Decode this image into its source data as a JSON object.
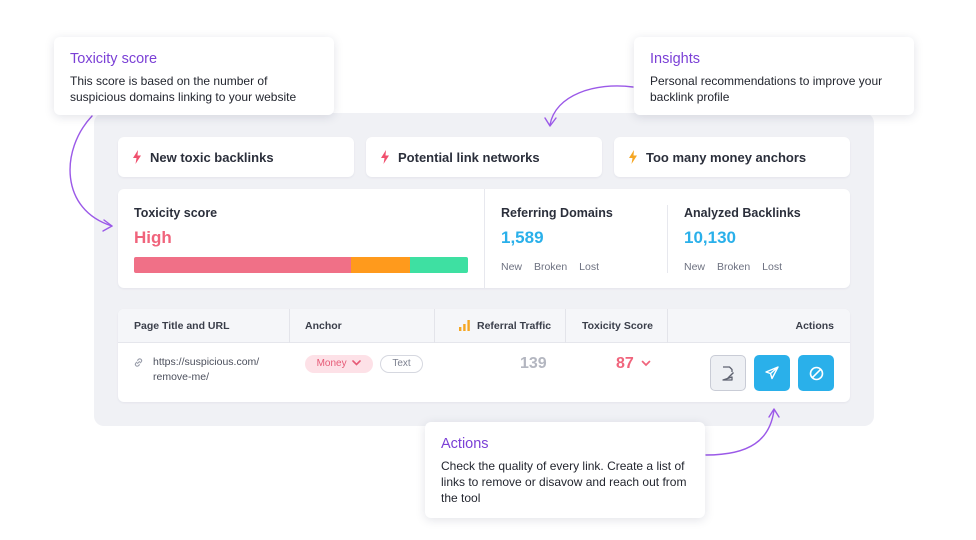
{
  "alerts": [
    {
      "label": "New toxic backlinks",
      "icon": "lightning-icon",
      "color": "#f0506e"
    },
    {
      "label": "Potential link networks",
      "icon": "lightning-icon",
      "color": "#f0506e"
    },
    {
      "label": "Too many money anchors",
      "icon": "lightning-icon",
      "color": "#f5a623"
    }
  ],
  "toxicity": {
    "label": "Toxicity score",
    "value": "High",
    "value_color": "#f0647c",
    "segments": [
      {
        "level": "high",
        "fraction": 0.65,
        "color": "#f07087"
      },
      {
        "level": "medium",
        "fraction": 0.175,
        "color": "#ff9a1c"
      },
      {
        "level": "low",
        "fraction": 0.175,
        "color": "#3ee0a2"
      }
    ]
  },
  "referring_domains": {
    "label": "Referring Domains",
    "value": "1,589",
    "subs": [
      "New",
      "Broken",
      "Lost"
    ]
  },
  "analyzed_backlinks": {
    "label": "Analyzed Backlinks",
    "value": "10,130",
    "subs": [
      "New",
      "Broken",
      "Lost"
    ]
  },
  "accent_blue": "#2ab0ea",
  "table": {
    "headers": {
      "page": "Page Title and URL",
      "anchor": "Anchor",
      "traffic": "Referral Traffic",
      "toxicity": "Toxicity Score",
      "actions": "Actions"
    },
    "row": {
      "url_line1": "https://suspicious.com/",
      "url_line2": "remove-me/",
      "anchor_primary": "Money",
      "anchor_secondary": "Text",
      "traffic": "139",
      "toxicity_score": "87"
    },
    "actions": [
      {
        "name": "add-to-remove-list-button",
        "icon": "document-edit-icon"
      },
      {
        "name": "send-email-button",
        "icon": "paper-plane-icon"
      },
      {
        "name": "disavow-button",
        "icon": "block-icon"
      }
    ]
  },
  "callouts": {
    "toxicity": {
      "title": "Toxicity score",
      "text": "This score is based on the number of suspicious domains linking to your website"
    },
    "insights": {
      "title": "Insights",
      "text": "Personal recommendations to improve your backlink profile"
    },
    "actions": {
      "title": "Actions",
      "text": "Check the quality of every link. Create a list of links to remove or disavow and reach out from the tool"
    }
  }
}
